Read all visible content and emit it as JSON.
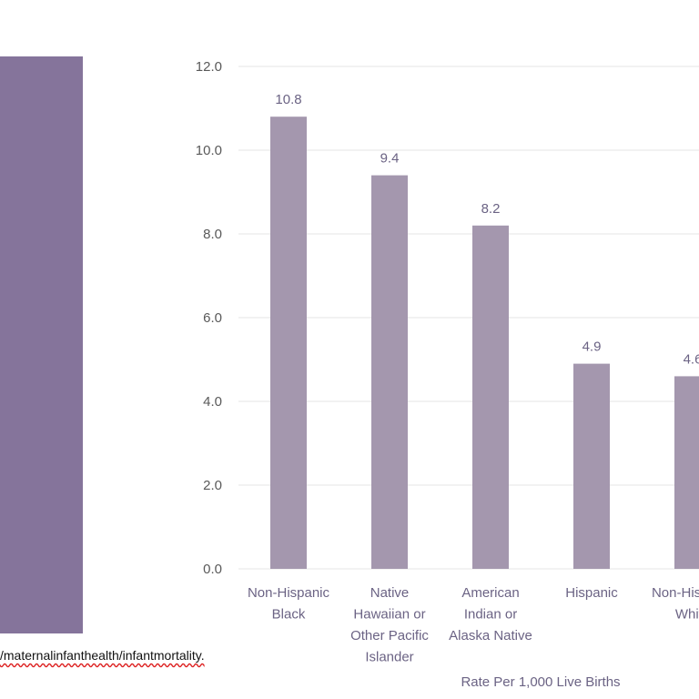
{
  "source": {
    "url_fragment": "/maternalinfanthealth/infantmortality."
  },
  "colors": {
    "panel": "#85749b",
    "bar": "#a497ae",
    "grid": "#e6e6e6"
  },
  "chart_data": {
    "type": "bar",
    "title": "",
    "xlabel": "Rate Per 1,000 Live Births",
    "ylabel": "",
    "ylim": [
      0,
      12
    ],
    "yticks": [
      "0.0",
      "2.0",
      "4.0",
      "6.0",
      "8.0",
      "10.0",
      "12.0"
    ],
    "grid": true,
    "categories": [
      [
        "Non-Hispanic",
        "Black"
      ],
      [
        "Native",
        "Hawaiian or",
        "Other Pacific",
        "Islander"
      ],
      [
        "American",
        "Indian or",
        "Alaska Native"
      ],
      [
        "Hispanic"
      ],
      [
        "Non-Hispanic",
        "White"
      ]
    ],
    "values": [
      10.8,
      9.4,
      8.2,
      4.9,
      4.6
    ],
    "data_labels": [
      "10.8",
      "9.4",
      "8.2",
      "4.9",
      "4.6"
    ]
  }
}
